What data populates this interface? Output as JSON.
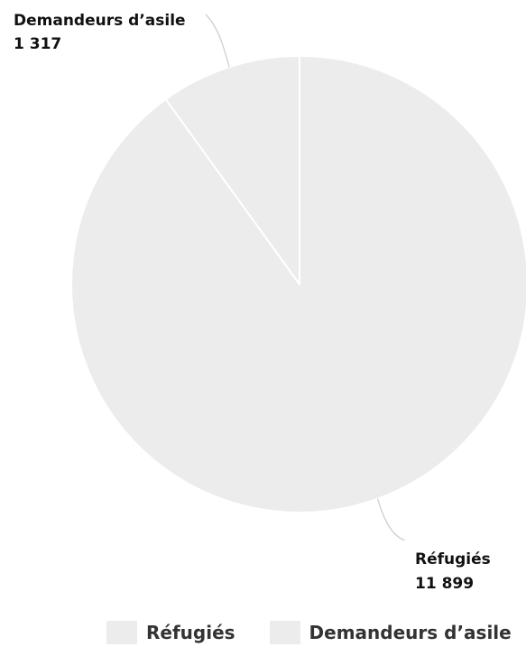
{
  "chart_data": {
    "type": "pie",
    "title": "",
    "slices": [
      {
        "label": "Réfugiés",
        "value": 11899,
        "value_label": "11 899",
        "color": "#ececec"
      },
      {
        "label": "Demandeurs d’asile",
        "value": 1317,
        "value_label": "1 317",
        "color": "#ececec"
      }
    ],
    "legend": {
      "position": "bottom",
      "items": [
        "Réfugiés",
        "Demandeurs d’asile"
      ]
    }
  }
}
